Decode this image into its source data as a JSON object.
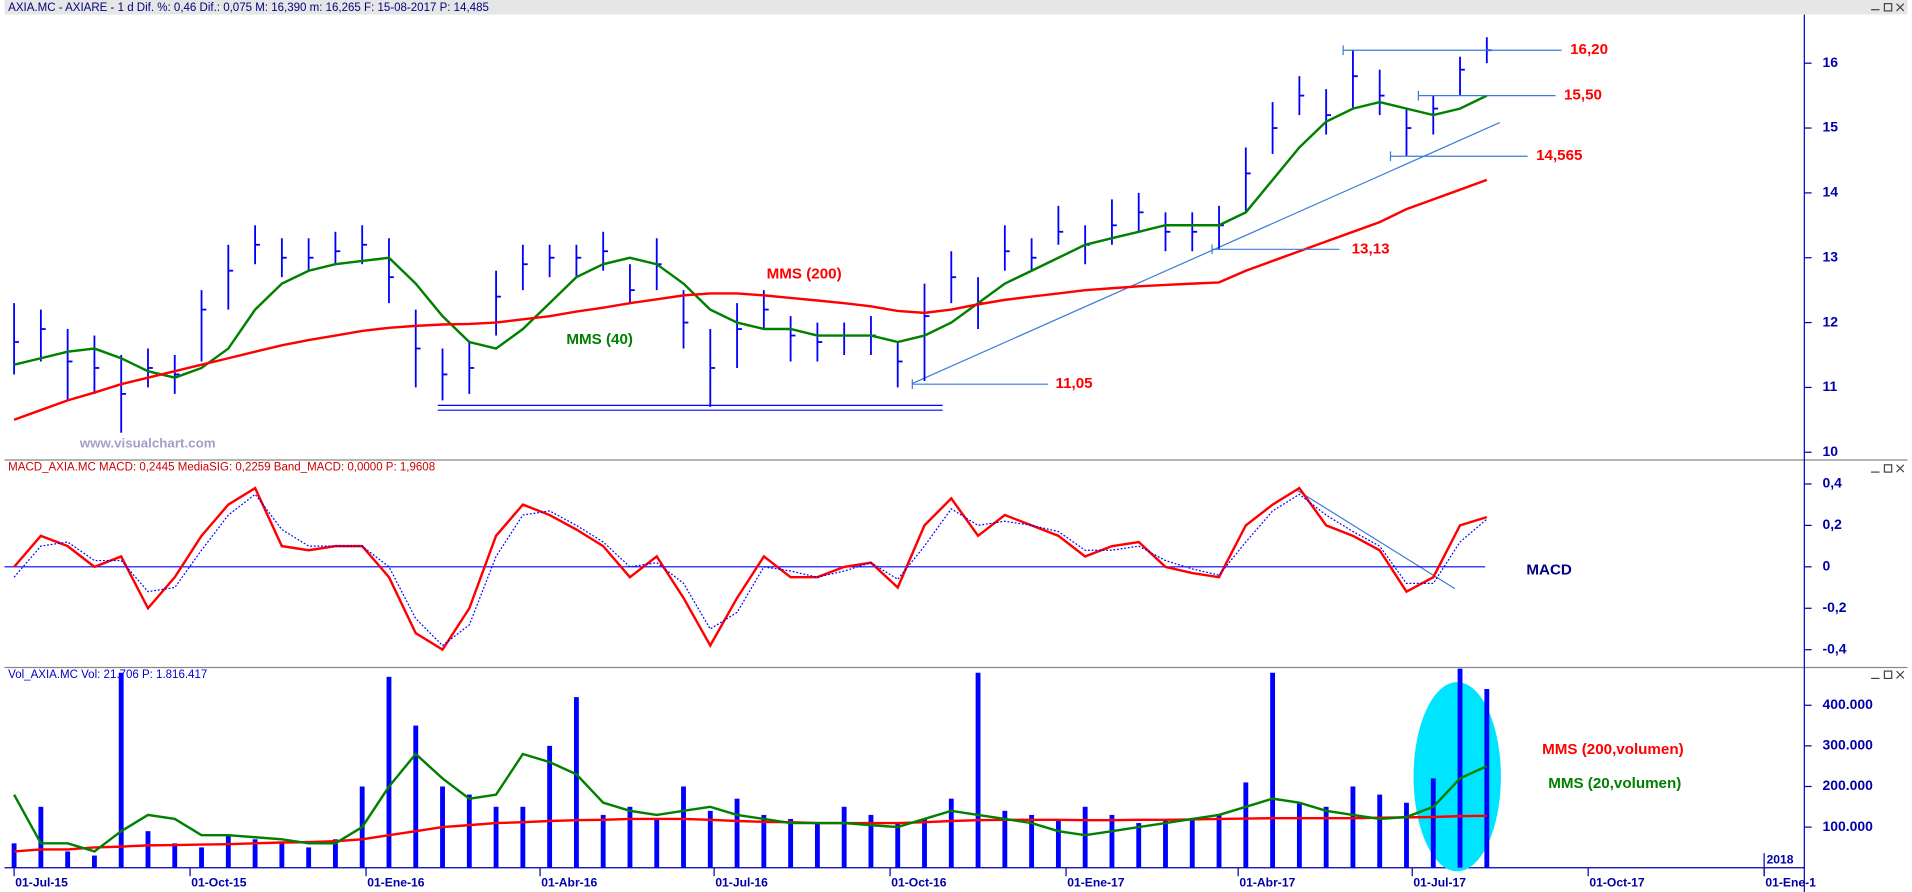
{
  "chart_data": [
    {
      "type": "ohlc",
      "title": "AXIA.MC - AXIARE - 1 d Dif. %: 0,46 Dif.: 0,075 M: 16,390 m: 16,265 F: 15-08-2017 P: 14,485",
      "watermark": "www.visualchart.com",
      "x": [
        "2015-07-01",
        "2015-07-15",
        "2015-07-29",
        "2015-08-12",
        "2015-08-26",
        "2015-09-09",
        "2015-09-23",
        "2015-10-07",
        "2015-10-21",
        "2015-11-04",
        "2015-11-18",
        "2015-12-02",
        "2015-12-16",
        "2015-12-30",
        "2016-01-13",
        "2016-01-27",
        "2016-02-10",
        "2016-02-24",
        "2016-03-09",
        "2016-03-23",
        "2016-04-06",
        "2016-04-20",
        "2016-05-04",
        "2016-05-18",
        "2016-06-01",
        "2016-06-15",
        "2016-06-29",
        "2016-07-13",
        "2016-07-27",
        "2016-08-10",
        "2016-08-24",
        "2016-09-07",
        "2016-09-21",
        "2016-10-05",
        "2016-10-19",
        "2016-11-02",
        "2016-11-16",
        "2016-11-30",
        "2016-12-14",
        "2016-12-28",
        "2017-01-11",
        "2017-01-25",
        "2017-02-08",
        "2017-02-22",
        "2017-03-08",
        "2017-03-22",
        "2017-04-05",
        "2017-04-19",
        "2017-05-03",
        "2017-05-17",
        "2017-05-31",
        "2017-06-14",
        "2017-06-28",
        "2017-07-12",
        "2017-07-26",
        "2017-08-09"
      ],
      "high": [
        12.3,
        12.2,
        11.9,
        11.8,
        11.5,
        11.6,
        11.5,
        12.5,
        13.2,
        13.5,
        13.3,
        13.3,
        13.4,
        13.5,
        13.3,
        12.2,
        11.6,
        11.7,
        12.8,
        13.2,
        13.2,
        13.2,
        13.4,
        12.9,
        13.3,
        12.5,
        11.9,
        12.3,
        12.5,
        12.1,
        12.0,
        12.0,
        12.1,
        11.7,
        12.6,
        13.1,
        12.7,
        13.5,
        13.3,
        13.8,
        13.5,
        13.9,
        14.0,
        13.7,
        13.7,
        13.8,
        14.7,
        15.4,
        15.8,
        15.6,
        16.2,
        15.9,
        15.3,
        15.5,
        16.1,
        16.4
      ],
      "low": [
        11.2,
        11.4,
        10.8,
        10.9,
        10.3,
        11.0,
        10.9,
        11.4,
        12.2,
        12.9,
        12.7,
        12.8,
        12.9,
        12.9,
        12.3,
        11.0,
        10.8,
        10.9,
        11.8,
        12.5,
        12.7,
        12.7,
        12.8,
        12.3,
        12.5,
        11.6,
        10.7,
        11.3,
        11.9,
        11.4,
        11.4,
        11.5,
        11.5,
        11.0,
        11.1,
        12.3,
        11.9,
        12.8,
        12.8,
        13.2,
        12.9,
        13.2,
        13.4,
        13.1,
        13.1,
        13.13,
        13.7,
        14.6,
        15.2,
        14.9,
        15.3,
        15.2,
        14.565,
        14.9,
        15.5,
        16.0
      ],
      "values": [
        11.7,
        11.9,
        11.4,
        11.3,
        10.9,
        11.3,
        11.2,
        12.2,
        12.8,
        13.2,
        13.0,
        13.0,
        13.1,
        13.2,
        12.7,
        11.6,
        11.2,
        11.3,
        12.4,
        12.9,
        13.0,
        13.0,
        13.1,
        12.5,
        12.9,
        12.0,
        11.3,
        11.9,
        12.2,
        11.8,
        11.7,
        11.8,
        11.8,
        11.4,
        12.1,
        12.7,
        12.3,
        13.1,
        13.0,
        13.4,
        13.2,
        13.5,
        13.7,
        13.4,
        13.4,
        13.5,
        14.3,
        15.0,
        15.5,
        15.2,
        15.8,
        15.5,
        15.0,
        15.3,
        15.9,
        16.2
      ],
      "color": "#0000ff",
      "series": [
        {
          "name": "MMS (40)",
          "color": "#008000",
          "values": [
            11.35,
            11.45,
            11.55,
            11.6,
            11.45,
            11.25,
            11.15,
            11.3,
            11.6,
            12.2,
            12.6,
            12.8,
            12.9,
            12.95,
            13.0,
            12.6,
            12.1,
            11.7,
            11.6,
            11.9,
            12.3,
            12.7,
            12.9,
            13.0,
            12.9,
            12.6,
            12.2,
            12.0,
            11.9,
            11.9,
            11.8,
            11.8,
            11.8,
            11.7,
            11.8,
            12.0,
            12.3,
            12.6,
            12.8,
            13.0,
            13.2,
            13.3,
            13.4,
            13.5,
            13.5,
            13.5,
            13.7,
            14.2,
            14.7,
            15.1,
            15.3,
            15.4,
            15.3,
            15.2,
            15.3,
            15.5
          ]
        },
        {
          "name": "MMS (200)",
          "color": "#ff0000",
          "values": [
            10.5,
            10.65,
            10.8,
            10.92,
            11.05,
            11.15,
            11.25,
            11.35,
            11.45,
            11.55,
            11.65,
            11.73,
            11.8,
            11.87,
            11.92,
            11.95,
            11.97,
            11.98,
            12.0,
            12.05,
            12.1,
            12.17,
            12.23,
            12.3,
            12.36,
            12.42,
            12.45,
            12.45,
            12.42,
            12.38,
            12.34,
            12.3,
            12.25,
            12.18,
            12.15,
            12.2,
            12.28,
            12.35,
            12.4,
            12.45,
            12.5,
            12.53,
            12.56,
            12.58,
            12.6,
            12.62,
            12.8,
            12.95,
            13.1,
            13.25,
            13.4,
            13.55,
            13.75,
            13.9,
            14.05,
            14.2
          ]
        }
      ],
      "levels": [
        {
          "value": 16.2,
          "label": "16,20"
        },
        {
          "value": 15.5,
          "label": "15,50"
        },
        {
          "value": 14.565,
          "label": "14,565"
        },
        {
          "value": 13.13,
          "label": "13,13"
        },
        {
          "value": 11.05,
          "label": "11,05"
        }
      ],
      "xlim": [
        "2015-06-26",
        "2018-01-22"
      ],
      "xticks": [
        {
          "value": "2015-07-01",
          "label": "01-Jul-15"
        },
        {
          "value": "2015-10-01",
          "label": "01-Oct-15"
        },
        {
          "value": "2016-01-01",
          "label": "01-Ene-16"
        },
        {
          "value": "2016-04-01",
          "label": "01-Abr-16"
        },
        {
          "value": "2016-07-01",
          "label": "01-Jul-16"
        },
        {
          "value": "2016-10-01",
          "label": "01-Oct-16"
        },
        {
          "value": "2017-01-01",
          "label": "01-Ene-17"
        },
        {
          "value": "2017-04-01",
          "label": "01-Abr-17"
        },
        {
          "value": "2017-07-01",
          "label": "01-Jul-17"
        },
        {
          "value": "2017-10-01",
          "label": "01-Oct-17"
        },
        {
          "value": "2018-01-01",
          "label": "01-Ene-1"
        }
      ],
      "year_marker": {
        "value": "2018-01-01",
        "label": "2018"
      },
      "ylim": [
        9.9,
        16.75
      ],
      "yticks": [
        10,
        11,
        12,
        13,
        14,
        15,
        16
      ]
    },
    {
      "type": "line",
      "title": "MACD_AXIA.MC MACD: 0,2445 MediaSIG: 0,2259 Band_MACD: 0,0000 P: 1,9608",
      "label": "MACD",
      "x": [
        "2015-07-01",
        "2015-07-15",
        "2015-07-29",
        "2015-08-12",
        "2015-08-26",
        "2015-09-09",
        "2015-09-23",
        "2015-10-07",
        "2015-10-21",
        "2015-11-04",
        "2015-11-18",
        "2015-12-02",
        "2015-12-16",
        "2015-12-30",
        "2016-01-13",
        "2016-01-27",
        "2016-02-10",
        "2016-02-24",
        "2016-03-09",
        "2016-03-23",
        "2016-04-06",
        "2016-04-20",
        "2016-05-04",
        "2016-05-18",
        "2016-06-01",
        "2016-06-15",
        "2016-06-29",
        "2016-07-13",
        "2016-07-27",
        "2016-08-10",
        "2016-08-24",
        "2016-09-07",
        "2016-09-21",
        "2016-10-05",
        "2016-10-19",
        "2016-11-02",
        "2016-11-16",
        "2016-11-30",
        "2016-12-14",
        "2016-12-28",
        "2017-01-11",
        "2017-01-25",
        "2017-02-08",
        "2017-02-22",
        "2017-03-08",
        "2017-03-22",
        "2017-04-05",
        "2017-04-19",
        "2017-05-03",
        "2017-05-17",
        "2017-05-31",
        "2017-06-14",
        "2017-06-28",
        "2017-07-12",
        "2017-07-26",
        "2017-08-09"
      ],
      "series": [
        {
          "color": "#ff0000",
          "values": [
            0.0,
            0.15,
            0.1,
            0.0,
            0.05,
            -0.2,
            -0.05,
            0.15,
            0.3,
            0.38,
            0.1,
            0.08,
            0.1,
            0.1,
            -0.05,
            -0.32,
            -0.4,
            -0.2,
            0.15,
            0.3,
            0.25,
            0.18,
            0.1,
            -0.05,
            0.05,
            -0.15,
            -0.38,
            -0.15,
            0.05,
            -0.05,
            -0.05,
            0.0,
            0.02,
            -0.1,
            0.2,
            0.33,
            0.15,
            0.25,
            0.2,
            0.15,
            0.05,
            0.1,
            0.12,
            0.0,
            -0.03,
            -0.05,
            0.2,
            0.3,
            0.38,
            0.2,
            0.15,
            0.08,
            -0.12,
            -0.05,
            0.2,
            0.24
          ]
        },
        {
          "color": "#0000ff",
          "dotted": true,
          "values": [
            -0.05,
            0.1,
            0.12,
            0.03,
            0.03,
            -0.12,
            -0.1,
            0.08,
            0.25,
            0.35,
            0.18,
            0.1,
            0.1,
            0.1,
            0.0,
            -0.25,
            -0.38,
            -0.28,
            0.05,
            0.25,
            0.27,
            0.2,
            0.12,
            0.0,
            0.02,
            -0.08,
            -0.3,
            -0.22,
            0.0,
            -0.02,
            -0.05,
            -0.02,
            0.02,
            -0.06,
            0.1,
            0.28,
            0.2,
            0.22,
            0.2,
            0.17,
            0.08,
            0.08,
            0.1,
            0.03,
            -0.01,
            -0.04,
            0.12,
            0.27,
            0.35,
            0.25,
            0.17,
            0.1,
            -0.08,
            -0.08,
            0.12,
            0.23
          ]
        }
      ],
      "zero_line": 0,
      "ylim": [
        -0.48,
        0.51
      ],
      "yticks": [
        {
          "value": 0.4,
          "label": "0,4"
        },
        {
          "value": 0.2,
          "label": "0,2"
        },
        0,
        {
          "value": -0.2,
          "label": "-0,2"
        },
        {
          "value": -0.4,
          "label": "-0,4"
        }
      ]
    },
    {
      "type": "bar",
      "title": "Vol_AXIA.MC Vol: 21.706 P: 1.816.417",
      "x": [
        "2015-07-01",
        "2015-07-15",
        "2015-07-29",
        "2015-08-12",
        "2015-08-26",
        "2015-09-09",
        "2015-09-23",
        "2015-10-07",
        "2015-10-21",
        "2015-11-04",
        "2015-11-18",
        "2015-12-02",
        "2015-12-16",
        "2015-12-30",
        "2016-01-13",
        "2016-01-27",
        "2016-02-10",
        "2016-02-24",
        "2016-03-09",
        "2016-03-23",
        "2016-04-06",
        "2016-04-20",
        "2016-05-04",
        "2016-05-18",
        "2016-06-01",
        "2016-06-15",
        "2016-06-29",
        "2016-07-13",
        "2016-07-27",
        "2016-08-10",
        "2016-08-24",
        "2016-09-07",
        "2016-09-21",
        "2016-10-05",
        "2016-10-19",
        "2016-11-02",
        "2016-11-16",
        "2016-11-30",
        "2016-12-14",
        "2016-12-28",
        "2017-01-11",
        "2017-01-25",
        "2017-02-08",
        "2017-02-22",
        "2017-03-08",
        "2017-03-22",
        "2017-04-05",
        "2017-04-19",
        "2017-05-03",
        "2017-05-17",
        "2017-05-31",
        "2017-06-14",
        "2017-06-28",
        "2017-07-12",
        "2017-07-26",
        "2017-08-09"
      ],
      "values": [
        60000,
        150000,
        40000,
        30000,
        480000,
        90000,
        60000,
        50000,
        80000,
        70000,
        60000,
        50000,
        70000,
        200000,
        470000,
        350000,
        200000,
        180000,
        150000,
        150000,
        300000,
        420000,
        130000,
        150000,
        120000,
        200000,
        140000,
        170000,
        130000,
        120000,
        110000,
        150000,
        130000,
        110000,
        120000,
        170000,
        480000,
        140000,
        130000,
        120000,
        150000,
        130000,
        110000,
        120000,
        120000,
        130000,
        210000,
        480000,
        160000,
        150000,
        200000,
        180000,
        160000,
        220000,
        490000,
        440000
      ],
      "color": "#0000ff",
      "series": [
        {
          "name": "MMS (200,volumen)",
          "color": "#ff0000",
          "values": [
            40000,
            45000,
            45000,
            50000,
            52000,
            55000,
            56000,
            57000,
            58000,
            60000,
            62000,
            63000,
            65000,
            70000,
            80000,
            90000,
            100000,
            105000,
            110000,
            112000,
            115000,
            117000,
            118000,
            120000,
            120000,
            120000,
            118000,
            115000,
            113000,
            112000,
            110000,
            110000,
            110000,
            110000,
            112000,
            115000,
            117000,
            118000,
            118000,
            118000,
            117000,
            117000,
            118000,
            118000,
            119000,
            120000,
            121000,
            122000,
            122000,
            122000,
            122000,
            123000,
            124000,
            125000,
            127000,
            128000
          ]
        },
        {
          "name": "MMS (20,volumen)",
          "color": "#008000",
          "values": [
            180000,
            60000,
            60000,
            40000,
            90000,
            130000,
            120000,
            80000,
            80000,
            75000,
            70000,
            60000,
            60000,
            100000,
            200000,
            280000,
            220000,
            170000,
            180000,
            280000,
            260000,
            230000,
            160000,
            140000,
            130000,
            140000,
            150000,
            130000,
            120000,
            110000,
            110000,
            110000,
            105000,
            100000,
            120000,
            140000,
            130000,
            120000,
            110000,
            90000,
            80000,
            90000,
            100000,
            110000,
            120000,
            130000,
            150000,
            170000,
            160000,
            140000,
            130000,
            120000,
            125000,
            150000,
            220000,
            250000
          ]
        }
      ],
      "ylim": [
        0,
        490000
      ],
      "yticks": [
        {
          "value": 100000,
          "label": "100.000"
        },
        {
          "value": 200000,
          "label": "200.000"
        },
        {
          "value": 300000,
          "label": "300.000"
        },
        {
          "value": 400000,
          "label": "400.000"
        }
      ]
    }
  ]
}
